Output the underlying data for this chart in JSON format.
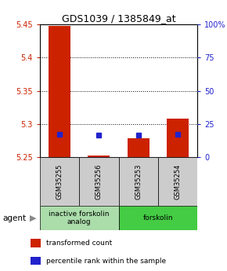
{
  "title": "GDS1039 / 1385849_at",
  "samples": [
    "GSM35255",
    "GSM35256",
    "GSM35253",
    "GSM35254"
  ],
  "bar_bottom": 5.25,
  "bar_tops": [
    5.448,
    5.253,
    5.278,
    5.308
  ],
  "blue_values": [
    5.285,
    5.283,
    5.283,
    5.284
  ],
  "ylim": [
    5.25,
    5.45
  ],
  "yticks_left": [
    5.25,
    5.3,
    5.35,
    5.4,
    5.45
  ],
  "yticks_right": [
    0,
    25,
    50,
    75,
    100
  ],
  "yticks_right_labels": [
    "0",
    "25",
    "50",
    "75",
    "100%"
  ],
  "bar_color": "#cc2200",
  "blue_color": "#2222cc",
  "bar_width": 0.55,
  "groups": [
    {
      "label": "inactive forskolin\nanalog",
      "spans": [
        0,
        1
      ],
      "color": "#aaddaa"
    },
    {
      "label": "forskolin",
      "spans": [
        2,
        3
      ],
      "color": "#44cc44"
    }
  ],
  "agent_label": "agent",
  "legend_items": [
    {
      "color": "#cc2200",
      "label": "transformed count"
    },
    {
      "color": "#2222cc",
      "label": "percentile rank within the sample"
    }
  ],
  "background_color": "#ffffff",
  "tick_label_color_left": "#cc2200",
  "tick_label_color_right": "#2222cc",
  "sample_box_color": "#cccccc",
  "title_fontsize": 9
}
